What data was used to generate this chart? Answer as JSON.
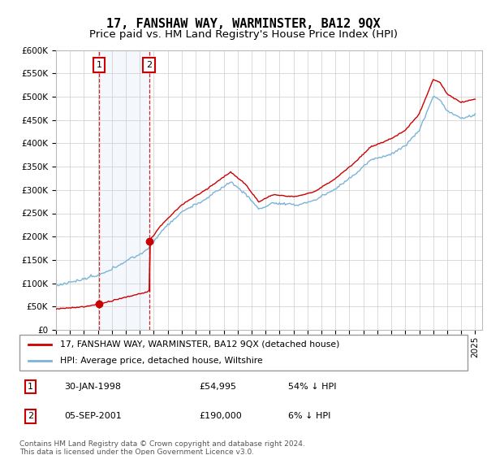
{
  "title": "17, FANSHAW WAY, WARMINSTER, BA12 9QX",
  "subtitle": "Price paid vs. HM Land Registry's House Price Index (HPI)",
  "legend_line1": "17, FANSHAW WAY, WARMINSTER, BA12 9QX (detached house)",
  "legend_line2": "HPI: Average price, detached house, Wiltshire",
  "footnote": "Contains HM Land Registry data © Crown copyright and database right 2024.\nThis data is licensed under the Open Government Licence v3.0.",
  "annotation1_date": "30-JAN-1998",
  "annotation1_price": "£54,995",
  "annotation1_hpi": "54% ↓ HPI",
  "annotation2_date": "05-SEP-2001",
  "annotation2_price": "£190,000",
  "annotation2_hpi": "6% ↓ HPI",
  "sale1_x": 1998.08,
  "sale1_y": 54995,
  "sale2_x": 2001.67,
  "sale2_y": 190000,
  "ylim": [
    0,
    600000
  ],
  "xlim": [
    1995.0,
    2025.5
  ],
  "hpi_color": "#7ab4d8",
  "price_color": "#cc0000",
  "annotation_box_color": "#cc0000",
  "grid_color": "#cccccc",
  "title_fontsize": 11,
  "subtitle_fontsize": 9.5,
  "tick_fontsize": 7.5
}
